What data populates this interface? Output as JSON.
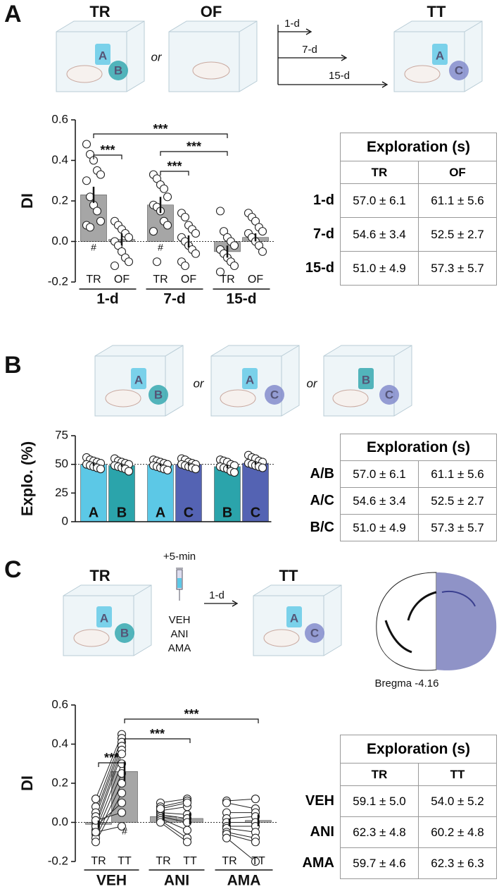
{
  "panels": [
    {
      "label": "A",
      "schematic": [
        "TR",
        "OF",
        "or",
        "1-d",
        "7-d",
        "15-d",
        "TT",
        "A",
        "B",
        "A",
        "C"
      ]
    },
    {
      "label": "B",
      "schematic": [
        "or",
        "or",
        "A",
        "B",
        "A",
        "C",
        "B",
        "C"
      ]
    },
    {
      "label": "C",
      "schematic": [
        "TR",
        "+5-min",
        "VEH",
        "ANI",
        "AMA",
        "1-d",
        "TT",
        "A",
        "B",
        "A",
        "C",
        "Bregma -4.16"
      ]
    }
  ],
  "chart_data": [
    {
      "type": "bar",
      "y_label": "DI",
      "ylim": [
        -0.2,
        0.6
      ],
      "yticks": [
        -0.2,
        {
          "value": 0,
          "label": "0.0"
        },
        0.2,
        0.4,
        0.6
      ],
      "categories": [
        "TR",
        "OF",
        "TR",
        "OF",
        "TR",
        "OF"
      ],
      "groups": [
        "1-d",
        "7-d",
        "15-d"
      ],
      "colors": [
        "#a6a6a6",
        "#a6a6a6",
        "#a6a6a6",
        "#a6a6a6",
        "#a6a6a6",
        "#a6a6a6"
      ],
      "values": [
        0.23,
        0.01,
        0.18,
        0.0,
        -0.05,
        0.02
      ],
      "errors": [
        0.04,
        0.03,
        0.04,
        0.03,
        0.03,
        0.02
      ],
      "points": [
        [
          0.48,
          0.43,
          0.4,
          0.35,
          0.33,
          0.3,
          0.22,
          0.18,
          0.15,
          0.1,
          0.08,
          0.07
        ],
        [
          0.1,
          0.08,
          0.06,
          0.04,
          0.02,
          0.0,
          -0.02,
          -0.05,
          -0.08,
          -0.1,
          -0.12
        ],
        [
          0.33,
          0.31,
          0.28,
          0.26,
          0.22,
          0.18,
          0.17,
          0.15,
          0.1,
          0.08,
          0.05,
          -0.1
        ],
        [
          0.14,
          0.12,
          0.08,
          0.06,
          0.04,
          0.02,
          0.0,
          -0.02,
          -0.04,
          -0.06,
          -0.1,
          -0.12
        ],
        [
          0.15,
          0.05,
          0.02,
          0.0,
          -0.02,
          -0.04,
          -0.06,
          -0.08,
          -0.1,
          -0.12,
          -0.15
        ],
        [
          0.14,
          0.12,
          0.1,
          0.07,
          0.05,
          0.04,
          0.02,
          0.0,
          -0.02,
          -0.05
        ]
      ],
      "bar_notes": [
        "#",
        null,
        "#",
        null,
        null,
        null
      ],
      "significance": [
        {
          "text": "***",
          "from": 0,
          "to": 4
        },
        {
          "text": "***",
          "from": 0,
          "to": 1
        },
        {
          "text": "***",
          "from": 2,
          "to": 4
        },
        {
          "text": "***",
          "from": 2,
          "to": 3
        }
      ]
    },
    {
      "type": "bar",
      "y_label": "Explo. (%)",
      "ylim": [
        0,
        75
      ],
      "yticks": [
        0,
        25,
        50,
        75
      ],
      "categories": [
        "A",
        "B",
        "A",
        "C",
        "B",
        "C"
      ],
      "colors": [
        "#5cc8e6",
        "#2ba4ab",
        "#5cc8e6",
        "#5463b3",
        "#2ba4ab",
        "#5463b3"
      ],
      "values": [
        50,
        49,
        49.5,
        50,
        48,
        51
      ],
      "errors": [
        1.2,
        1.0,
        1.0,
        0.9,
        1.5,
        1.2
      ],
      "reference_line": 50,
      "points": [
        [
          56,
          54,
          53,
          52,
          51,
          50,
          49,
          48,
          47,
          46
        ],
        [
          55,
          53,
          52,
          51,
          50,
          49,
          48,
          47,
          46,
          44
        ],
        [
          54,
          53,
          52,
          51,
          50,
          49,
          48,
          47,
          46,
          45
        ],
        [
          55,
          54,
          52,
          51,
          50,
          50,
          49,
          48,
          47,
          46
        ],
        [
          54,
          53,
          52,
          50,
          49,
          48,
          47,
          46,
          44,
          43
        ],
        [
          58,
          56,
          55,
          53,
          52,
          51,
          50,
          49,
          48,
          47
        ]
      ]
    },
    {
      "type": "bar",
      "y_label": "DI",
      "ylim": [
        -0.2,
        0.6
      ],
      "yticks": [
        -0.2,
        {
          "value": 0,
          "label": "0.0"
        },
        0.2,
        0.4,
        0.6
      ],
      "categories": [
        "TR",
        "TT",
        "TR",
        "TT",
        "TR",
        "TT"
      ],
      "groups": [
        "VEH",
        "ANI",
        "AMA"
      ],
      "colors": [
        "#a6a6a6",
        "#a6a6a6",
        "#a6a6a6",
        "#a6a6a6",
        "#a6a6a6",
        "#a6a6a6"
      ],
      "values": [
        -0.01,
        0.26,
        0.03,
        0.02,
        0.0,
        0.01
      ],
      "errors": [
        0.02,
        0.05,
        0.02,
        0.03,
        0.02,
        0.03
      ],
      "paired": true,
      "points": [
        [
          0.12,
          0.08,
          0.05,
          0.03,
          0.0,
          -0.02,
          -0.04,
          -0.06,
          -0.08,
          -0.1,
          -0.02,
          0.01,
          -0.05
        ],
        [
          0.45,
          0.43,
          0.41,
          0.39,
          0.37,
          0.35,
          0.3,
          0.25,
          0.2,
          0.15,
          0.1,
          0.05,
          -0.02
        ],
        [
          0.1,
          0.08,
          0.06,
          0.05,
          0.04,
          0.03,
          0.02,
          0.01,
          0.0,
          0.07
        ],
        [
          0.12,
          0.11,
          0.08,
          0.04,
          0.02,
          0.0,
          -0.04,
          -0.08,
          -0.1,
          0.1
        ],
        [
          0.11,
          0.1,
          0.05,
          0.02,
          0.0,
          -0.02,
          -0.03,
          -0.05,
          -0.06,
          -0.08
        ],
        [
          0.12,
          0.07,
          0.05,
          0.03,
          0.0,
          -0.02,
          -0.05,
          -0.08,
          -0.1,
          -0.2
        ]
      ],
      "bar_notes": [
        null,
        "#",
        null,
        null,
        null,
        null
      ],
      "significance": [
        {
          "text": "***",
          "from": 0,
          "to": 1
        },
        {
          "text": "***",
          "from": 1,
          "to": 3
        },
        {
          "text": "***",
          "from": 1,
          "to": 5
        }
      ]
    }
  ],
  "tables": [
    {
      "title": "Exploration (s)",
      "columns": [
        "TR",
        "OF"
      ],
      "rows": [
        {
          "label": "1-d",
          "cells": [
            "57.0 ± 6.1",
            "61.1 ± 5.6"
          ]
        },
        {
          "label": "7-d",
          "cells": [
            "54.6 ± 3.4",
            "52.5 ± 2.7"
          ]
        },
        {
          "label": "15-d",
          "cells": [
            "51.0 ± 4.9",
            "57.3 ± 5.7"
          ]
        }
      ]
    },
    {
      "title": "Exploration (s)",
      "columns": [],
      "rows": [
        {
          "label": "A/B",
          "cells": [
            "57.0 ± 6.1",
            "61.1 ± 5.6"
          ]
        },
        {
          "label": "A/C",
          "cells": [
            "54.6 ± 3.4",
            "52.5 ± 2.7"
          ]
        },
        {
          "label": "B/C",
          "cells": [
            "51.0 ± 4.9",
            "57.3 ± 5.7"
          ]
        }
      ]
    },
    {
      "title": "Exploration (s)",
      "columns": [
        "TR",
        "TT"
      ],
      "rows": [
        {
          "label": "VEH",
          "cells": [
            "59.1 ± 5.0",
            "54.0 ± 5.2"
          ]
        },
        {
          "label": "ANI",
          "cells": [
            "62.3 ± 4.8",
            "60.2 ± 4.8"
          ]
        },
        {
          "label": "AMA",
          "cells": [
            "59.7 ± 4.6",
            "62.3 ± 6.3"
          ]
        }
      ]
    }
  ]
}
